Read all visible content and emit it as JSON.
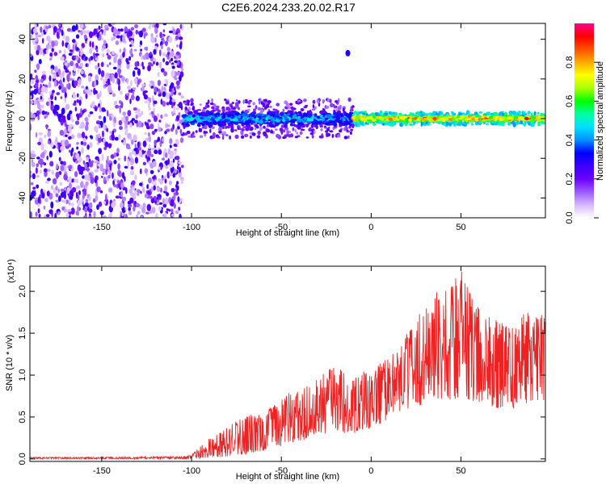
{
  "figure": {
    "title": "C2E6.2024.233.20.02.R17"
  },
  "chart_data": [
    {
      "type": "heatmap",
      "title": "C2E6.2024.233.20.02.R17",
      "xlabel": "Height of straight line (km)",
      "ylabel": "Frequency (Hz)",
      "xlim": [
        -190,
        97
      ],
      "ylim": [
        -50,
        48
      ],
      "xticks": [
        -150,
        -100,
        -50,
        0,
        50
      ],
      "yticks": [
        -40,
        -20,
        0,
        20,
        40
      ],
      "grid": false,
      "colorbar": {
        "label": "Normalized spectral amplitude",
        "range": [
          0,
          1
        ],
        "ticks": [
          0.0,
          0.2,
          0.4,
          0.6,
          0.8
        ],
        "tick_labels": [
          "0.0",
          "0.2",
          "0.4",
          "0.6",
          "0.8"
        ],
        "colormap": [
          "#ffffff",
          "#d7b8ff",
          "#9b59ff",
          "#6a00ff",
          "#3a00ff",
          "#0000ff",
          "#0090ff",
          "#00e0ff",
          "#00ffa0",
          "#00ff00",
          "#aaff00",
          "#ffff00",
          "#ffaa00",
          "#ff5000",
          "#ff0000",
          "#ff0090"
        ]
      },
      "regions": [
        {
          "x_range": [
            -190,
            -105
          ],
          "description": "broadband noise across all frequencies",
          "amplitude": [
            0.05,
            0.3
          ]
        },
        {
          "x_range": [
            -105,
            -10
          ],
          "band_hz": [
            -6,
            6
          ],
          "amplitude": [
            0.1,
            0.55
          ]
        },
        {
          "x_range": [
            -10,
            97
          ],
          "band_hz": [
            -2,
            2
          ],
          "center_hz": 0,
          "amplitude": [
            0.4,
            0.95
          ]
        }
      ],
      "annotations": [
        {
          "x": -13,
          "y": 33,
          "amplitude": 0.3
        }
      ]
    },
    {
      "type": "line",
      "xlabel": "Height of straight line (km)",
      "ylabel": "SNR (10 * v/v)",
      "y_multiplier": "(x10⁴)",
      "xlim": [
        -190,
        97
      ],
      "ylim": [
        -0.03,
        2.3
      ],
      "xticks": [
        -150,
        -100,
        -50,
        0,
        50
      ],
      "yticks": [
        0.0,
        0.5,
        1.0,
        1.5,
        2.0
      ],
      "ytick_labels": [
        "0.0",
        "0.5",
        "1.0",
        "1.5",
        "2.0"
      ],
      "grid": false,
      "series": [
        {
          "color": "#ee2222",
          "envelope_x": [
            -190,
            -150,
            -105,
            -100,
            -95,
            -90,
            -85,
            -80,
            -75,
            -70,
            -65,
            -60,
            -55,
            -50,
            -45,
            -40,
            -35,
            -30,
            -25,
            -20,
            -15,
            -10,
            -5,
            0,
            5,
            10,
            15,
            20,
            25,
            30,
            35,
            40,
            45,
            50,
            55,
            60,
            65,
            70,
            75,
            80,
            85,
            90,
            97
          ],
          "envelope_max": [
            0.02,
            0.02,
            0.03,
            0.05,
            0.15,
            0.25,
            0.3,
            0.4,
            0.45,
            0.5,
            0.55,
            0.5,
            0.65,
            0.7,
            0.8,
            0.8,
            0.9,
            0.95,
            1.05,
            1.1,
            1.05,
            1.05,
            1.05,
            1.0,
            1.15,
            1.2,
            1.35,
            1.5,
            1.6,
            1.95,
            2.0,
            2.0,
            2.1,
            2.3,
            2.0,
            1.8,
            1.7,
            1.65,
            1.6,
            1.55,
            1.75,
            1.75,
            1.7
          ],
          "envelope_min": [
            0.0,
            0.0,
            0.0,
            0.0,
            0.0,
            0.01,
            0.02,
            0.03,
            0.05,
            0.05,
            0.08,
            0.1,
            0.12,
            0.15,
            0.2,
            0.2,
            0.25,
            0.3,
            0.3,
            0.35,
            0.3,
            0.3,
            0.35,
            0.35,
            0.4,
            0.5,
            0.55,
            0.6,
            0.6,
            0.65,
            0.7,
            0.7,
            0.7,
            0.75,
            0.7,
            0.65,
            0.65,
            0.6,
            0.6,
            0.6,
            0.65,
            0.7,
            0.7
          ]
        }
      ]
    }
  ]
}
